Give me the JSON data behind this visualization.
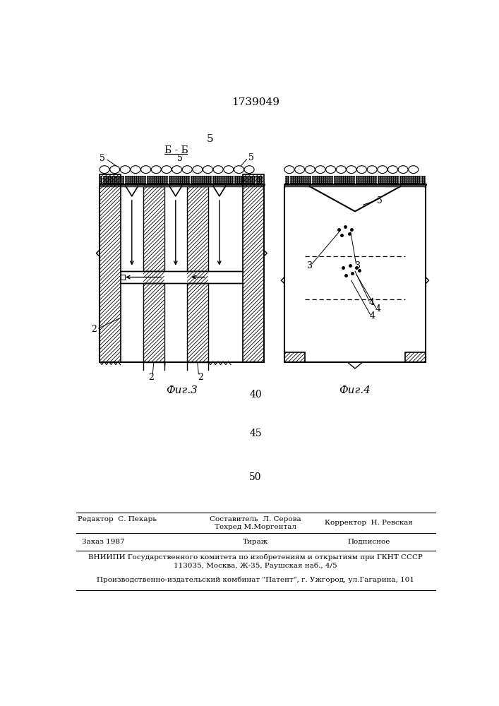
{
  "patent_number": "1739049",
  "page_num": "5",
  "fig3_label": "Фиг.3",
  "fig4_label": "Фиг.4",
  "section_label": "Б - Б",
  "bg_color": "#ffffff",
  "numbers_right": [
    "40",
    "45",
    "50"
  ],
  "footer": {
    "editor": "Редактор  С. Пекарь",
    "comp": "Составитель  Л. Серова",
    "tech": "Техред М.Моргентал",
    "corr": "Корректор  Н. Ревская",
    "order": "Заказ 1987",
    "tirazh": "Тираж",
    "podp": "Подписное",
    "vniipи": "ВНИИПИ Государственного комитета по изобретениям и открытиям при ГКНТ СССР",
    "addr": "113035, Москва, Ж-35, Раушская наб., 4/5",
    "plant": "Производственно-издательский комбинат \"Патент\", г. Ужгород, ул.Гагарина, 101"
  }
}
